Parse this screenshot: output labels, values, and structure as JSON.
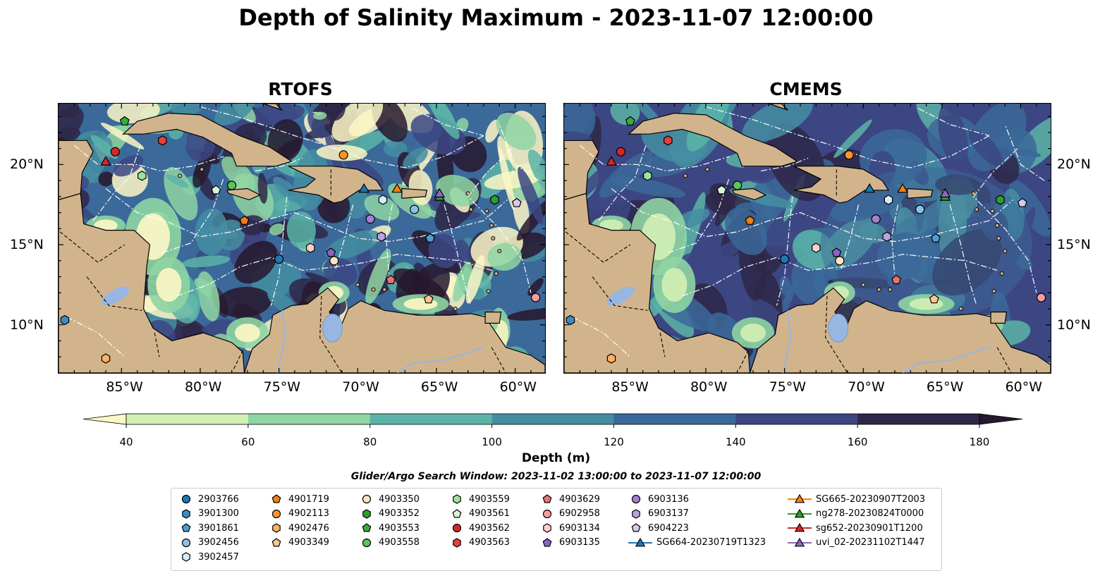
{
  "title": "Depth of Salinity Maximum - 2023-11-07 12:00:00",
  "panels": [
    {
      "title": "RTOFS"
    },
    {
      "title": "CMEMS"
    }
  ],
  "latitude_ticks": [
    "20°N",
    "15°N",
    "10°N"
  ],
  "longitude_ticks": [
    "85°W",
    "80°W",
    "75°W",
    "70°W",
    "65°W",
    "60°W"
  ],
  "colorbar": {
    "label": "Depth (m)",
    "ticks": [
      "40",
      "60",
      "80",
      "100",
      "120",
      "140",
      "160",
      "180"
    ],
    "colors": [
      "#d2efb4",
      "#8fd5a3",
      "#5ab4a8",
      "#458ea2",
      "#3b6999",
      "#3c4683",
      "#2e2748"
    ],
    "under_color": "#fdf7c5",
    "over_color": "#27172e"
  },
  "colors": {
    "land": "#d2b48c",
    "water_body": "#97b6e1",
    "river": "#97b6e1"
  },
  "search_window": "Glider/Argo Search Window: 2023-11-02 13:00:00 to 2023-11-07 12:00:00",
  "legend": [
    {
      "label": "2903766",
      "marker": "circle",
      "color": "#1f77b4"
    },
    {
      "label": "3901300",
      "marker": "hexagon",
      "color": "#3a8cc7"
    },
    {
      "label": "3901861",
      "marker": "pentagon",
      "color": "#4a9ed6"
    },
    {
      "label": "3902456",
      "marker": "circle",
      "color": "#8ec0e6"
    },
    {
      "label": "3902457",
      "marker": "hexagon",
      "color": "#d9ebf7"
    },
    {
      "label": "4901719",
      "marker": "pentagon",
      "color": "#f07f10"
    },
    {
      "label": "4902113",
      "marker": "circle",
      "color": "#ff942e"
    },
    {
      "label": "4902476",
      "marker": "hexagon",
      "color": "#ffb062"
    },
    {
      "label": "4903349",
      "marker": "pentagon",
      "color": "#ffc490"
    },
    {
      "label": "4903350",
      "marker": "circle",
      "color": "#ffe2c4"
    },
    {
      "label": "4903352",
      "marker": "hexagon",
      "color": "#2ca02c"
    },
    {
      "label": "4903553",
      "marker": "pentagon",
      "color": "#3aaa3a"
    },
    {
      "label": "4903558",
      "marker": "circle",
      "color": "#5cc45c"
    },
    {
      "label": "4903559",
      "marker": "hexagon",
      "color": "#9de39d"
    },
    {
      "label": "4903561",
      "marker": "pentagon",
      "color": "#d8f5d5"
    },
    {
      "label": "4903562",
      "marker": "circle",
      "color": "#d62728"
    },
    {
      "label": "4903563",
      "marker": "hexagon",
      "color": "#e2403e"
    },
    {
      "label": "4903629",
      "marker": "pentagon",
      "color": "#ee7070"
    },
    {
      "label": "6902958",
      "marker": "circle",
      "color": "#f69e9e"
    },
    {
      "label": "6903134",
      "marker": "hexagon",
      "color": "#fbcfcf"
    },
    {
      "label": "6903135",
      "marker": "pentagon",
      "color": "#8b63c9"
    },
    {
      "label": "6903136",
      "marker": "circle",
      "color": "#a37fd1"
    },
    {
      "label": "6903137",
      "marker": "hexagon",
      "color": "#bca2de"
    },
    {
      "label": "6904223",
      "marker": "pentagon",
      "color": "#d8c8ee"
    },
    {
      "label": "SG664-20230719T1323",
      "marker": "triangle",
      "color": "#1f77b4"
    },
    {
      "label": "SG665-20230907T2003",
      "marker": "triangle",
      "color": "#ff7f0e"
    },
    {
      "label": "ng278-20230824T0000",
      "marker": "triangle",
      "color": "#2ca02c"
    },
    {
      "label": "sg652-20230901T1200",
      "marker": "triangle",
      "color": "#d62728"
    },
    {
      "label": "uvi_02-20231102T1447",
      "marker": "triangle",
      "color": "#9467bd"
    }
  ],
  "observations": [
    {
      "id": "2903766",
      "lon": -75.0,
      "lat": 14.1
    },
    {
      "id": "3901300",
      "lon": -88.6,
      "lat": 10.3
    },
    {
      "id": "3901861",
      "lon": -65.4,
      "lat": 15.4
    },
    {
      "id": "3902456",
      "lon": -66.4,
      "lat": 17.2
    },
    {
      "id": "3902457",
      "lon": -68.4,
      "lat": 17.8
    },
    {
      "id": "4901719",
      "lon": -77.2,
      "lat": 16.5
    },
    {
      "id": "4902113",
      "lon": -70.9,
      "lat": 20.6
    },
    {
      "id": "4902476",
      "lon": -86.0,
      "lat": 7.9
    },
    {
      "id": "4903349",
      "lon": -65.5,
      "lat": 11.6
    },
    {
      "id": "4903350",
      "lon": -71.5,
      "lat": 14.0
    },
    {
      "id": "4903352",
      "lon": -61.3,
      "lat": 17.8
    },
    {
      "id": "4903553",
      "lon": -84.8,
      "lat": 22.7
    },
    {
      "id": "4903558",
      "lon": -78.0,
      "lat": 18.7
    },
    {
      "id": "4903559",
      "lon": -83.7,
      "lat": 19.3
    },
    {
      "id": "4903561",
      "lon": -79.0,
      "lat": 18.4
    },
    {
      "id": "4903562",
      "lon": -85.4,
      "lat": 20.8
    },
    {
      "id": "4903563",
      "lon": -82.4,
      "lat": 21.5
    },
    {
      "id": "4903629",
      "lon": -67.9,
      "lat": 12.8
    },
    {
      "id": "6902958",
      "lon": -58.7,
      "lat": 11.7
    },
    {
      "id": "6903134",
      "lon": -73.0,
      "lat": 14.8
    },
    {
      "id": "6903135",
      "lon": -71.7,
      "lat": 14.5
    },
    {
      "id": "6903136",
      "lon": -69.2,
      "lat": 16.6
    },
    {
      "id": "6903137",
      "lon": -68.5,
      "lat": 15.5
    },
    {
      "id": "6904223",
      "lon": -59.9,
      "lat": 17.6
    },
    {
      "id": "SG664-20230719T1323",
      "lon": -69.6,
      "lat": 18.5
    },
    {
      "id": "SG665-20230907T2003",
      "lon": -67.5,
      "lat": 18.5
    },
    {
      "id": "ng278-20230824T0000",
      "lon": -64.8,
      "lat": 18.0
    },
    {
      "id": "sg652-20230901T1200",
      "lon": -86.0,
      "lat": 20.2
    },
    {
      "id": "uvi_02-20231102T1447",
      "lon": -64.8,
      "lat": 18.2
    }
  ]
}
